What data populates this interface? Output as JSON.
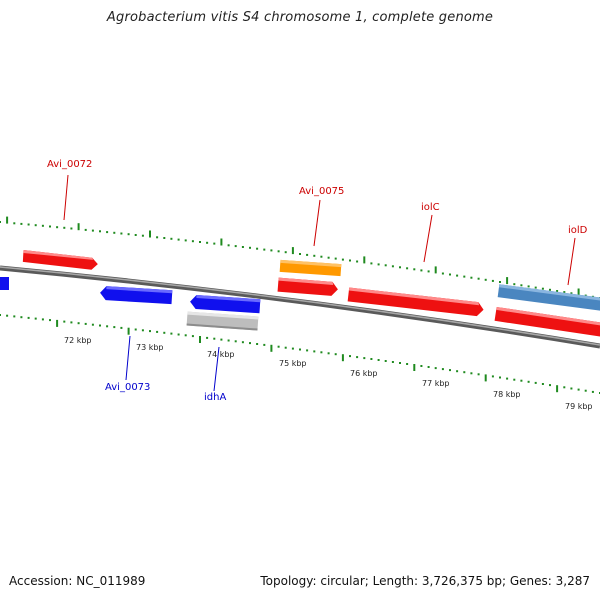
{
  "title": "Agrobacterium vitis S4 chromosome 1, complete genome",
  "footer": {
    "accession": "Accession: NC_011989",
    "summary": "Topology: circular; Length: 3,726,375 bp; Genes: 3,287"
  },
  "colors": {
    "backbone": "#8a8a8a",
    "tick": "#1f8a1f",
    "label_forward": "#cc0000",
    "label_reverse": "#0000cc"
  },
  "scale_labels": [
    "72 kbp",
    "73 kbp",
    "74 kbp",
    "75 kbp",
    "76 kbp",
    "77 kbp",
    "78 kbp",
    "79 kbp"
  ],
  "genes": [
    {
      "id": "g-left-blue",
      "color": "#1010ee",
      "strand": "reverse"
    },
    {
      "id": "Avi_0072",
      "color": "#ee1111",
      "strand": "forward",
      "label": "Avi_0072"
    },
    {
      "id": "Avi_0073",
      "color": "#1010ee",
      "strand": "reverse",
      "label": "Avi_0073"
    },
    {
      "id": "g-074-blue",
      "color": "#1010ee",
      "strand": "reverse"
    },
    {
      "id": "idhA",
      "color": "#c0c0c0",
      "strand": "reverse",
      "label": "idhA"
    },
    {
      "id": "Avi_0075",
      "color": "#ff9900",
      "strand": "forward",
      "label": "Avi_0075"
    },
    {
      "id": "g-075-red",
      "color": "#ee1111",
      "strand": "forward"
    },
    {
      "id": "iolC",
      "color": "#ee1111",
      "strand": "forward",
      "label": "iolC"
    },
    {
      "id": "g-right-steel",
      "color": "#4a86c0",
      "strand": "forward"
    },
    {
      "id": "iolD",
      "color": "#ee1111",
      "strand": "forward",
      "label": "iolD"
    }
  ]
}
